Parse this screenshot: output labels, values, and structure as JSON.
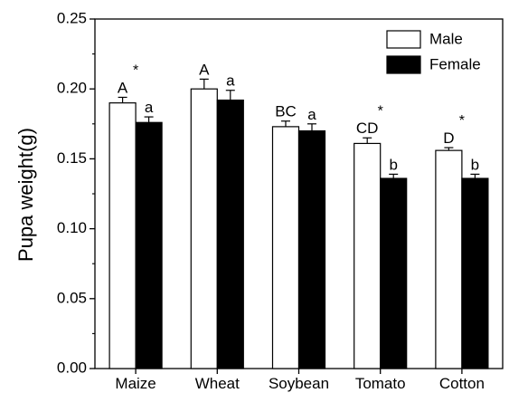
{
  "chart_data": {
    "type": "bar",
    "ylabel": "Pupa weight(g)",
    "ylim": [
      0,
      0.25
    ],
    "yticks": [
      0.0,
      0.05,
      0.1,
      0.15,
      0.2,
      0.25
    ],
    "ytick_labels": [
      "0.00",
      "0.05",
      "0.10",
      "0.15",
      "0.20",
      "0.25"
    ],
    "categories": [
      "Maize",
      "Wheat",
      "Soybean",
      "Tomato",
      "Cotton"
    ],
    "series": [
      {
        "name": "Male",
        "fill": "#ffffff",
        "values": [
          0.19,
          0.2,
          0.173,
          0.161,
          0.156
        ],
        "errors": [
          0.004,
          0.007,
          0.004,
          0.004,
          0.002
        ],
        "letters": [
          "A",
          "A",
          "BC",
          "CD",
          "D"
        ]
      },
      {
        "name": "Female",
        "fill": "#000000",
        "values": [
          0.176,
          0.192,
          0.17,
          0.136,
          0.136
        ],
        "errors": [
          0.004,
          0.007,
          0.005,
          0.003,
          0.003
        ],
        "letters": [
          "a",
          "a",
          "a",
          "b",
          "b"
        ]
      }
    ],
    "significance_marker": "*",
    "significant_categories": [
      "Maize",
      "Tomato",
      "Cotton"
    ],
    "legend_position": "top-right",
    "grid": false
  }
}
